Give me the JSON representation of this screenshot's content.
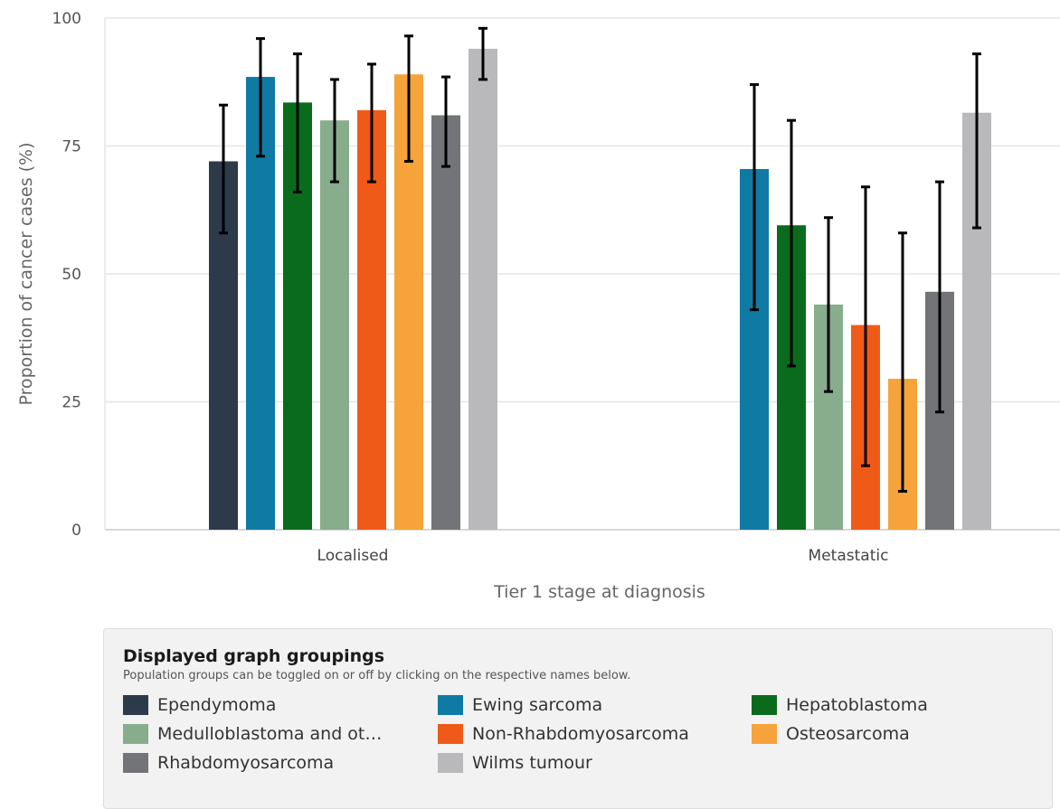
{
  "chart_data": {
    "type": "bar",
    "categories": [
      "Localised",
      "Metastatic"
    ],
    "xlabel": "Tier 1 stage at diagnosis",
    "ylabel": "Proportion of cancer cases (%)",
    "ylim": [
      0,
      100
    ],
    "yticks": [
      0,
      25,
      50,
      75,
      100
    ],
    "grid": true,
    "series": [
      {
        "name": "Ependymoma",
        "color": "#2c3a4a",
        "values": [
          72,
          null
        ],
        "err_low": [
          58,
          null
        ],
        "err_high": [
          83,
          null
        ]
      },
      {
        "name": "Ewing sarcoma",
        "color": "#0f7aa3",
        "values": [
          88.5,
          70.5
        ],
        "err_low": [
          73,
          43
        ],
        "err_high": [
          96,
          87
        ]
      },
      {
        "name": "Hepatoblastoma",
        "color": "#0a6b1d",
        "values": [
          83.5,
          59.5
        ],
        "err_low": [
          66,
          32
        ],
        "err_high": [
          93,
          80
        ]
      },
      {
        "name": "Medulloblastoma and ot...",
        "color": "#87ad8c",
        "values": [
          80,
          44
        ],
        "err_low": [
          68,
          27
        ],
        "err_high": [
          88,
          61
        ]
      },
      {
        "name": "Non-Rhabdomyosarcoma",
        "color": "#f05a18",
        "values": [
          82,
          40
        ],
        "err_low": [
          68,
          12.5
        ],
        "err_high": [
          91,
          67
        ]
      },
      {
        "name": "Osteosarcoma",
        "color": "#f5a33a",
        "values": [
          89,
          29.5
        ],
        "err_low": [
          72,
          7.5
        ],
        "err_high": [
          96.5,
          58
        ]
      },
      {
        "name": "Rhabdomyosarcoma",
        "color": "#737478",
        "values": [
          81,
          46.5
        ],
        "err_low": [
          71,
          23
        ],
        "err_high": [
          88.5,
          68
        ]
      },
      {
        "name": "Wilms tumour",
        "color": "#b9b9bc",
        "values": [
          94,
          81.5
        ],
        "err_low": [
          88,
          59
        ],
        "err_high": [
          98,
          93
        ]
      }
    ]
  },
  "legend": {
    "title": "Displayed graph groupings",
    "subtitle": "Population groups can be toggled on or off by clicking on the respective names below.",
    "items": [
      {
        "label": "Ependymoma",
        "color": "#2c3a4a"
      },
      {
        "label": "Ewing sarcoma",
        "color": "#0f7aa3"
      },
      {
        "label": "Hepatoblastoma",
        "color": "#0a6b1d"
      },
      {
        "label": "Medulloblastoma and ot…",
        "color": "#87ad8c"
      },
      {
        "label": "Non-Rhabdomyosarcoma",
        "color": "#f05a18"
      },
      {
        "label": "Osteosarcoma",
        "color": "#f5a33a"
      },
      {
        "label": "Rhabdomyosarcoma",
        "color": "#737478"
      },
      {
        "label": "Wilms tumour",
        "color": "#b9b9bc"
      }
    ]
  }
}
